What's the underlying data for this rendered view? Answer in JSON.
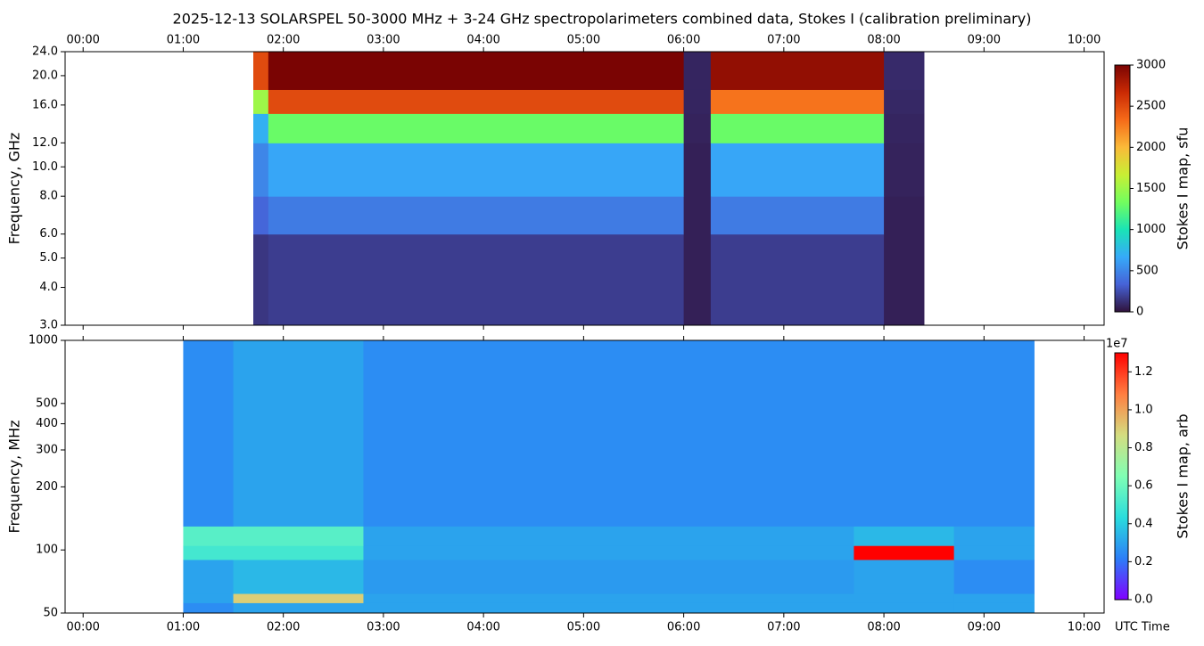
{
  "title": "2025-12-13  SOLARSPEL  50-3000 MHz  +  3-24 GHz  spectropolarimeters combined data,  Stokes I  (calibration preliminary)",
  "chart_data": [
    {
      "type": "heatmap",
      "ylabel": "Frequency, GHz",
      "colorbar_label": "Stokes I map, sfu",
      "xlim": [
        -0.18,
        10.2
      ],
      "xticks": [
        {
          "value": 0,
          "label": "00:00"
        },
        {
          "value": 1,
          "label": "01:00"
        },
        {
          "value": 2,
          "label": "02:00"
        },
        {
          "value": 3,
          "label": "03:00"
        },
        {
          "value": 4,
          "label": "04:00"
        },
        {
          "value": 5,
          "label": "05:00"
        },
        {
          "value": 6,
          "label": "06:00"
        },
        {
          "value": 7,
          "label": "07:00"
        },
        {
          "value": 8,
          "label": "08:00"
        },
        {
          "value": 9,
          "label": "09:00"
        },
        {
          "value": 10,
          "label": "10:00"
        }
      ],
      "xtick_position": "top",
      "ylim": [
        3,
        24
      ],
      "yscale": "log",
      "yticks": [
        {
          "value": 3,
          "label": "3.0"
        },
        {
          "value": 4,
          "label": "4.0"
        },
        {
          "value": 5,
          "label": "5.0"
        },
        {
          "value": 6,
          "label": "6.0"
        },
        {
          "value": 8,
          "label": "8.0"
        },
        {
          "value": 10,
          "label": "10.0"
        },
        {
          "value": 12,
          "label": "12.0"
        },
        {
          "value": 16,
          "label": "16.0"
        },
        {
          "value": 20,
          "label": "20.0"
        },
        {
          "value": 24,
          "label": "24.0"
        }
      ],
      "x_edges": [
        1.7,
        1.85,
        6.0,
        6.27,
        8.0,
        8.4
      ],
      "y_edges": [
        3,
        6,
        8,
        12,
        15,
        18,
        24
      ],
      "z": [
        [
          150,
          180,
          60,
          180,
          60
        ],
        [
          350,
          450,
          60,
          450,
          60
        ],
        [
          500,
          650,
          60,
          650,
          70
        ],
        [
          700,
          1300,
          70,
          1300,
          80
        ],
        [
          1500,
          2500,
          80,
          2300,
          90
        ],
        [
          2500,
          3000,
          80,
          2900,
          100
        ]
      ],
      "clim": [
        0,
        3000
      ],
      "cticks": [
        0,
        500,
        1000,
        1500,
        2000,
        2500,
        3000
      ],
      "colormap": [
        "#30123b",
        "#4662d7",
        "#36aaf9",
        "#1ae4b6",
        "#72fe5e",
        "#c8ef34",
        "#faba39",
        "#f66b19",
        "#ca2a04",
        "#7a0403"
      ]
    },
    {
      "type": "heatmap",
      "ylabel": "Frequency, MHz",
      "xlabel": "UTC Time",
      "colorbar_label": "Stokes I map, arb",
      "colorbar_offset": "1e7",
      "xlim": [
        -0.18,
        10.2
      ],
      "xticks": [
        {
          "value": 0,
          "label": "00:00"
        },
        {
          "value": 1,
          "label": "01:00"
        },
        {
          "value": 2,
          "label": "02:00"
        },
        {
          "value": 3,
          "label": "03:00"
        },
        {
          "value": 4,
          "label": "04:00"
        },
        {
          "value": 5,
          "label": "05:00"
        },
        {
          "value": 6,
          "label": "06:00"
        },
        {
          "value": 7,
          "label": "07:00"
        },
        {
          "value": 8,
          "label": "08:00"
        },
        {
          "value": 9,
          "label": "09:00"
        },
        {
          "value": 10,
          "label": "10:00"
        }
      ],
      "xtick_position": "bottom",
      "ylim": [
        50,
        1000
      ],
      "yscale": "log",
      "yticks": [
        50,
        100,
        200,
        300,
        400,
        500,
        1000
      ],
      "x_edges": [
        1.0,
        1.5,
        2.8,
        7.7,
        8.7,
        9.5
      ],
      "y_edges": [
        50,
        56,
        62,
        90,
        105,
        130,
        1000
      ],
      "z": [
        [
          2500000,
          3000000,
          3000000,
          3000000,
          3000000
        ],
        [
          3000000,
          9000000,
          3000000,
          3000000,
          3000000
        ],
        [
          3000000,
          3500000,
          2800000,
          3000000,
          2500000
        ],
        [
          5000000,
          5000000,
          3000000,
          13000000,
          3000000
        ],
        [
          5500000,
          5500000,
          3000000,
          3500000,
          3000000
        ],
        [
          2500000,
          3000000,
          2500000,
          2500000,
          2500000
        ]
      ],
      "clim": [
        0,
        13000000
      ],
      "cticks": [
        {
          "value": 0,
          "label": "0.0"
        },
        {
          "value": 2000000,
          "label": "0.2"
        },
        {
          "value": 4000000,
          "label": "0.4"
        },
        {
          "value": 6000000,
          "label": "0.6"
        },
        {
          "value": 8000000,
          "label": "0.8"
        },
        {
          "value": 10000000,
          "label": "1.0"
        },
        {
          "value": 12000000,
          "label": "1.2"
        }
      ],
      "colormap": [
        "#8000ff",
        "#2c7ef7",
        "#2adddd",
        "#80ffb4",
        "#d4dd80",
        "#ff7e41",
        "#ff0000"
      ]
    }
  ]
}
